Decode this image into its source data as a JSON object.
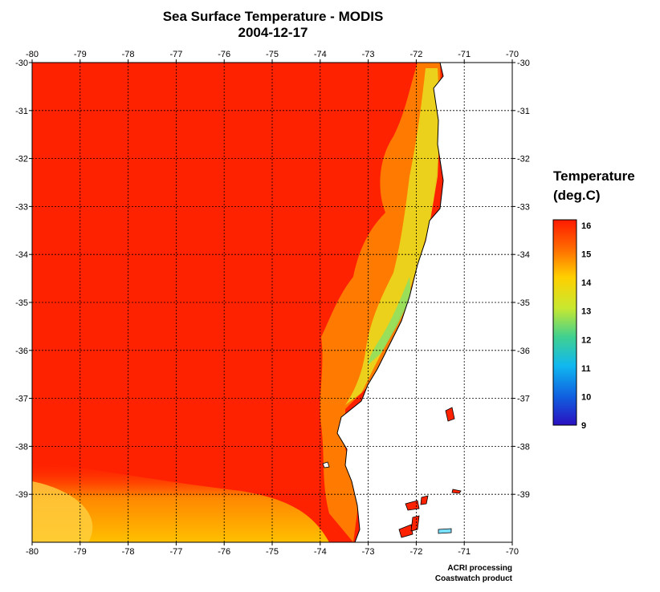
{
  "title": {
    "line1": "Sea Surface Temperature - MODIS",
    "line2": "2004-12-17"
  },
  "map": {
    "lon_ticks": [
      -80,
      -79,
      -78,
      -77,
      -76,
      -75,
      -74,
      -73,
      -72,
      -71,
      -70
    ],
    "lat_ticks": [
      -30,
      -31,
      -32,
      -33,
      -34,
      -35,
      -36,
      -37,
      -38,
      -39
    ],
    "lon_range": [
      -80,
      -70
    ],
    "lat_range": [
      -40,
      -30
    ],
    "grid": "on",
    "colors": {
      "ocean_warm": "#ff2200",
      "ocean_mid": "#ffb000",
      "ocean_cool": "#b8e030",
      "land": "#ffffff",
      "coast": "#000000"
    }
  },
  "legend": {
    "title_line1": "Temperature",
    "title_line2": "(deg.C)",
    "ticks": [
      16,
      15,
      14,
      13,
      12,
      11,
      10,
      9
    ],
    "range": [
      9,
      16
    ]
  },
  "footer": {
    "line1": "ACRI processing",
    "line2": "Coastwatch product"
  }
}
